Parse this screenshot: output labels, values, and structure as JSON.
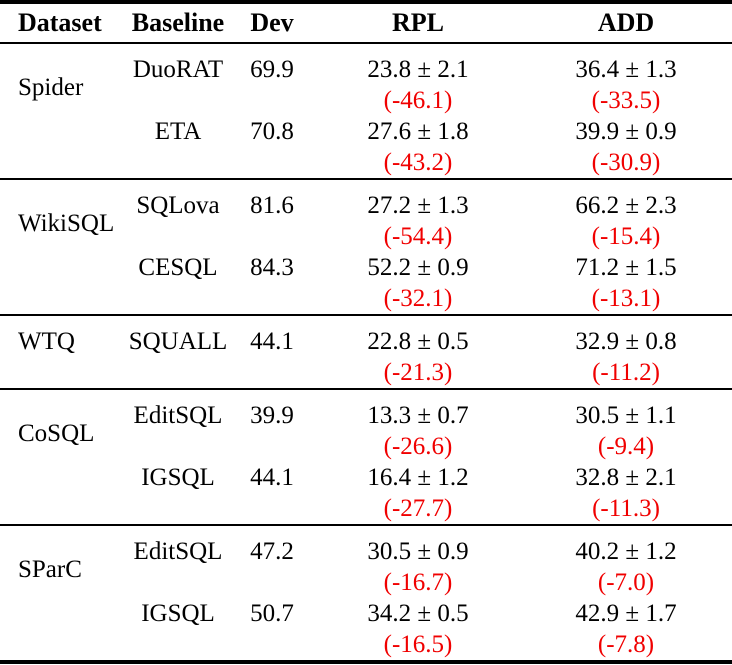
{
  "table": {
    "columns": [
      "Dataset",
      "Baseline",
      "Dev",
      "RPL",
      "ADD"
    ],
    "colors": {
      "background": "#ffffff",
      "text": "#000000",
      "rule": "#000000",
      "delta_text": "#f00000"
    },
    "groups": [
      {
        "dataset": "Spider",
        "rows": [
          {
            "baseline": "DuoRAT",
            "dev": "69.9",
            "rpl": {
              "value": "23.8 ± 2.1",
              "delta": "(-46.1)"
            },
            "add": {
              "value": "36.4 ± 1.3",
              "delta": "(-33.5)"
            }
          },
          {
            "baseline": "ETA",
            "dev": "70.8",
            "rpl": {
              "value": "27.6 ± 1.8",
              "delta": "(-43.2)"
            },
            "add": {
              "value": "39.9 ± 0.9",
              "delta": "(-30.9)"
            }
          }
        ]
      },
      {
        "dataset": "WikiSQL",
        "rows": [
          {
            "baseline": "SQLova",
            "dev": "81.6",
            "rpl": {
              "value": "27.2 ± 1.3",
              "delta": "(-54.4)"
            },
            "add": {
              "value": "66.2 ± 2.3",
              "delta": "(-15.4)"
            }
          },
          {
            "baseline": "CESQL",
            "dev": "84.3",
            "rpl": {
              "value": "52.2 ± 0.9",
              "delta": "(-32.1)"
            },
            "add": {
              "value": "71.2 ± 1.5",
              "delta": "(-13.1)"
            }
          }
        ]
      },
      {
        "dataset": "WTQ",
        "rows": [
          {
            "baseline": "SQUALL",
            "dev": "44.1",
            "rpl": {
              "value": "22.8 ± 0.5",
              "delta": "(-21.3)"
            },
            "add": {
              "value": "32.9 ± 0.8",
              "delta": "(-11.2)"
            }
          }
        ]
      },
      {
        "dataset": "CoSQL",
        "rows": [
          {
            "baseline": "EditSQL",
            "dev": "39.9",
            "rpl": {
              "value": "13.3 ± 0.7",
              "delta": "(-26.6)"
            },
            "add": {
              "value": "30.5 ± 1.1",
              "delta": "(-9.4)"
            }
          },
          {
            "baseline": "IGSQL",
            "dev": "44.1",
            "rpl": {
              "value": "16.4 ± 1.2",
              "delta": "(-27.7)"
            },
            "add": {
              "value": "32.8 ± 2.1",
              "delta": "(-11.3)"
            }
          }
        ]
      },
      {
        "dataset": "SParC",
        "rows": [
          {
            "baseline": "EditSQL",
            "dev": "47.2",
            "rpl": {
              "value": "30.5 ± 0.9",
              "delta": "(-16.7)"
            },
            "add": {
              "value": "40.2 ± 1.2",
              "delta": "(-7.0)"
            }
          },
          {
            "baseline": "IGSQL",
            "dev": "50.7",
            "rpl": {
              "value": "34.2 ± 0.5",
              "delta": "(-16.5)"
            },
            "add": {
              "value": "42.9 ± 1.7",
              "delta": "(-7.8)"
            }
          }
        ]
      }
    ]
  }
}
